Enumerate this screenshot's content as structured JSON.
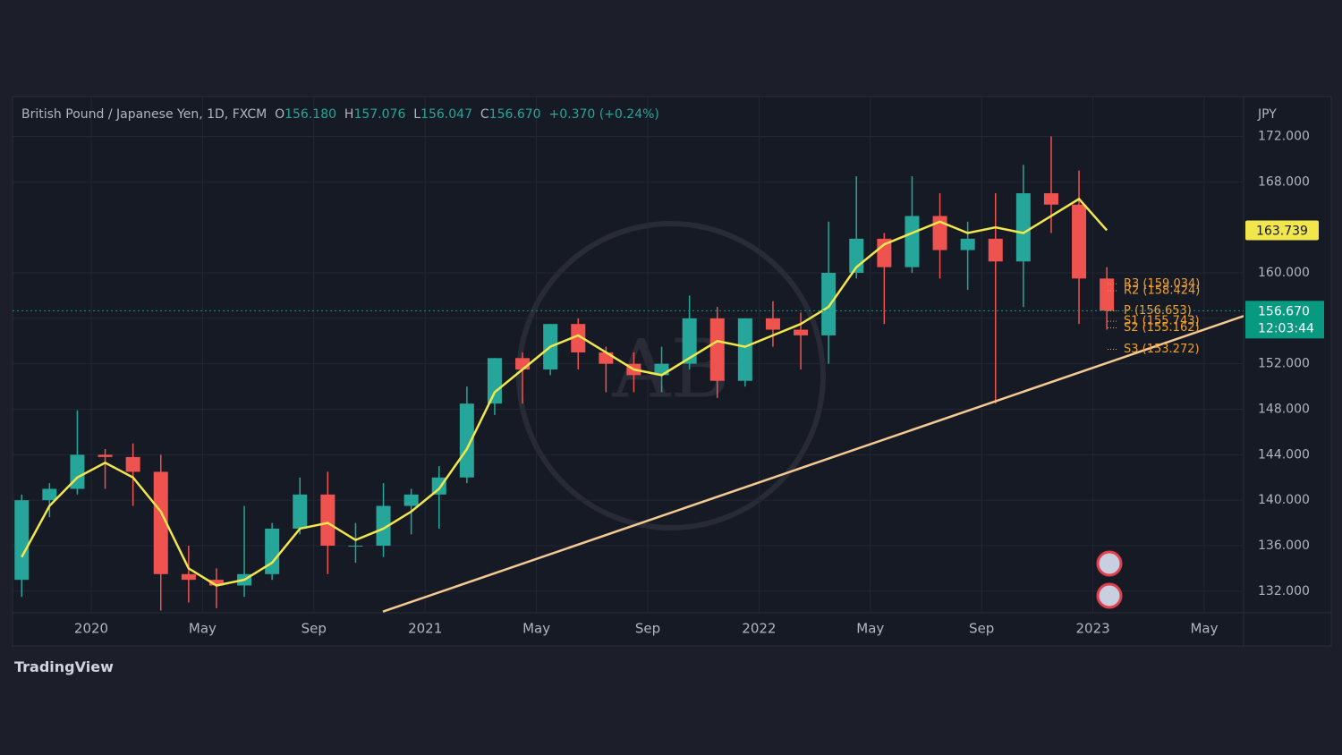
{
  "header": {
    "symbol": "British Pound / Japanese Yen, 1D, FXCM",
    "o_label": "O",
    "o": "156.180",
    "h_label": "H",
    "h": "157.076",
    "l_label": "L",
    "l": "156.047",
    "c_label": "C",
    "c": "156.670",
    "change": "+0.370 (+0.24%)"
  },
  "brand": "TradingView",
  "chart_data": {
    "type": "candlestick",
    "categories": [
      null,
      null,
      null,
      "2020",
      null,
      null,
      null,
      "May",
      null,
      null,
      null,
      "Sep",
      null,
      null,
      null,
      "2021",
      null,
      null,
      null,
      "May",
      null,
      null,
      null,
      "Sep",
      null,
      null,
      null,
      "2022",
      null,
      null,
      null,
      "May",
      null,
      null,
      null,
      "Sep",
      null,
      null,
      null,
      "2023",
      null,
      null,
      null,
      "May"
    ],
    "open": [
      133,
      140,
      141,
      144,
      143.8,
      142.5,
      133.5,
      133,
      132.5,
      133.5,
      137.5,
      140.5,
      136,
      136,
      139.5,
      140.5,
      142,
      148.5,
      152.5,
      151.5,
      155.5,
      153,
      152,
      151,
      152,
      156,
      150.5,
      156,
      155,
      154.5,
      160,
      163,
      160.5,
      165,
      162,
      163,
      161,
      167,
      166,
      159.5,
      null,
      null,
      null,
      null
    ],
    "high": [
      140.5,
      141.5,
      147.9,
      144.5,
      145,
      144,
      136,
      134,
      139.5,
      138,
      142,
      142.5,
      138,
      141.5,
      141,
      143,
      150,
      152.5,
      153,
      155.5,
      156,
      153.5,
      153,
      153.5,
      158,
      157,
      156,
      157.5,
      156.5,
      164.5,
      168.5,
      163.5,
      168.5,
      167,
      164.5,
      167,
      169.5,
      172,
      169,
      160.5,
      null,
      null,
      null,
      null
    ],
    "low": [
      131.5,
      138.5,
      140.5,
      141,
      139.5,
      130.3,
      131,
      130.5,
      131.5,
      133,
      137,
      133.5,
      134.5,
      135,
      137,
      137.5,
      141.5,
      147.5,
      148.5,
      151,
      151.5,
      149.5,
      149.5,
      149.5,
      151.5,
      149,
      150,
      153.5,
      151.5,
      152,
      159.5,
      155.5,
      160,
      159.5,
      158.5,
      148.5,
      157,
      163.5,
      155.5,
      155,
      null,
      null,
      null,
      null
    ],
    "close": [
      140,
      141,
      144,
      143.8,
      142.5,
      133.5,
      133,
      132.5,
      133.5,
      137.5,
      140.5,
      136,
      136,
      139.5,
      140.5,
      142,
      148.5,
      152.5,
      151.5,
      155.5,
      153,
      152,
      151,
      152,
      156,
      150.5,
      156,
      155,
      154.5,
      160,
      163,
      160.5,
      165,
      162,
      163,
      161,
      167,
      166,
      159.5,
      156.67,
      null,
      null,
      null,
      null
    ],
    "ma": {
      "color": "#f2e64d",
      "values": [
        135,
        139.5,
        142,
        143.3,
        142,
        139,
        134,
        132.5,
        133,
        134.5,
        137.5,
        138,
        136.5,
        137.5,
        139,
        141,
        144.5,
        149.5,
        151.5,
        153.5,
        154.5,
        153,
        151.5,
        151,
        152.5,
        154,
        153.5,
        154.5,
        155.5,
        157,
        160.5,
        162.5,
        163.5,
        164.5,
        163.5,
        164,
        163.5,
        165,
        166.5,
        163.739,
        null,
        null,
        null,
        null
      ],
      "tag": {
        "value": 163.739,
        "label": "163.739"
      }
    },
    "up_color": "#26a69a",
    "down_color": "#ef5350",
    "trendline": {
      "color": "#f5c992",
      "start": 130.2,
      "end": 156.2
    },
    "last_price": {
      "value": 156.67,
      "label": "156.670",
      "countdown": "12:03:44",
      "color": "#089981"
    },
    "pivots": [
      {
        "label": "R3 (159.034)",
        "value": 159.034
      },
      {
        "label": "R2 (158.424)",
        "value": 158.424
      },
      {
        "label": "P (156.653)",
        "value": 156.653
      },
      {
        "label": "S1 (155.743)",
        "value": 155.743
      },
      {
        "label": "S2 (155.162)",
        "value": 155.162
      },
      {
        "label": "S3 (153.272)",
        "value": 153.272
      }
    ],
    "pivot_color": "#f0a030",
    "y_unit": "JPY",
    "ylim": [
      130.1,
      175.5
    ],
    "yticks": [
      {
        "value": 132,
        "label": "132.000"
      },
      {
        "value": 136,
        "label": "136.000"
      },
      {
        "value": 140,
        "label": "140.000"
      },
      {
        "value": 144,
        "label": "144.000"
      },
      {
        "value": 148,
        "label": "148.000"
      },
      {
        "value": 152,
        "label": "152.000"
      },
      {
        "value": 156,
        "label": "156.000"
      },
      {
        "value": 160,
        "label": "160.000"
      },
      {
        "value": 168,
        "label": "168.000"
      },
      {
        "value": 172,
        "label": "172.000"
      }
    ],
    "grid": true
  }
}
